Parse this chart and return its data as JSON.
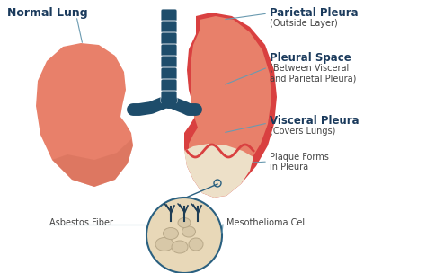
{
  "bg_color": "#ffffff",
  "lung_left_color": "#E8806A",
  "lung_left_shadow": "#D4705A",
  "lung_right_outer": "#D94040",
  "lung_right_inner": "#E8806A",
  "lung_right_shadow": "#D4705A",
  "pleura_cream": "#EDE0C8",
  "trachea_color": "#1E4D6B",
  "circle_fill": "#E8D8B8",
  "circle_edge": "#2A6080",
  "cell_fill": "#D8C8A8",
  "cell_edge": "#B8A888",
  "fiber_color": "#1E3D55",
  "title_color": "#1A3A5C",
  "label_color": "#444444",
  "line_color": "#6A9AB0",
  "labels": {
    "normal_lung": "Normal Lung",
    "parietal_pleura": "Parietal Pleura",
    "parietal_sub": "(Outside Layer)",
    "pleural_space": "Pleural Space",
    "pleural_sub1": "(Between Visceral",
    "pleural_sub2": "and Parietal Pleura)",
    "visceral_pleura": "Visceral Pleura",
    "visceral_sub": "(Covers Lungs)",
    "plaque": "Plaque Forms",
    "plaque2": "in Pleura",
    "asbestos": "Asbestos Fiber",
    "meso": "Mesothelioma Cell"
  }
}
